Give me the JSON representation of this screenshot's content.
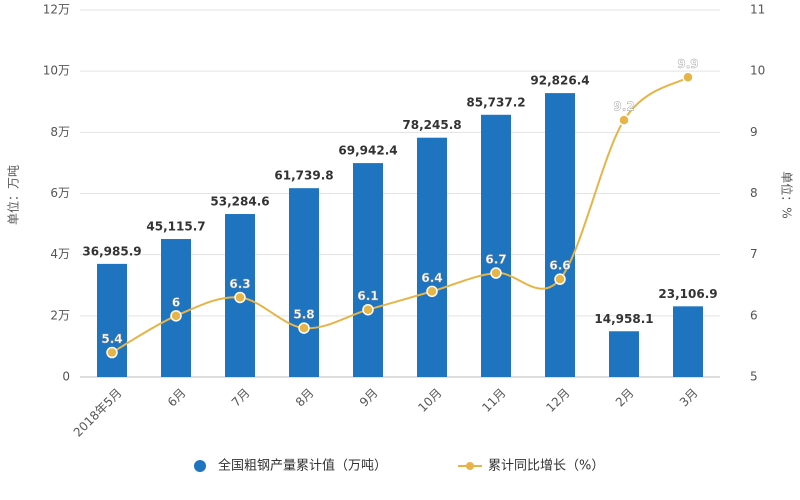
{
  "chart_data": {
    "type": "bar-line",
    "categories": [
      "2018年5月",
      "6月",
      "7月",
      "8月",
      "9月",
      "10月",
      "11月",
      "12月",
      "2月",
      "3月"
    ],
    "y_label": "单位：万吨",
    "y2_label": "单位：%",
    "ylim": [
      0,
      120000
    ],
    "yticks": [
      0,
      {
        "value": 20000,
        "label": "2万"
      },
      {
        "value": 40000,
        "label": "4万"
      },
      {
        "value": 60000,
        "label": "6万"
      },
      {
        "value": 80000,
        "label": "8万"
      },
      {
        "value": 100000,
        "label": "10万"
      },
      {
        "value": 120000,
        "label": "12万"
      }
    ],
    "y2lim": [
      5,
      11
    ],
    "y2ticks": [
      5,
      6,
      7,
      8,
      9,
      10,
      11
    ],
    "grid": true,
    "series": [
      {
        "name": "全国粗钢产量累计值（万吨）",
        "type": "bar",
        "color": "#1f74c0",
        "values": [
          36985.9,
          45115.7,
          53284.6,
          61739.8,
          69942.4,
          78245.8,
          85737.2,
          92826.4,
          14958.1,
          23106.9
        ],
        "value_labels": [
          "36,985.9",
          "45,115.7",
          "53,284.6",
          "61,739.8",
          "69,942.4",
          "78,245.8",
          "85,737.2",
          "92,826.4",
          "14,958.1",
          "23,106.9"
        ]
      },
      {
        "name": "累计同比增长（%）",
        "type": "line",
        "axis": "y2",
        "color": "#e6b447",
        "values": [
          5.4,
          6,
          6.3,
          5.8,
          6.1,
          6.4,
          6.7,
          6.6,
          9.2,
          9.9
        ]
      }
    ]
  }
}
